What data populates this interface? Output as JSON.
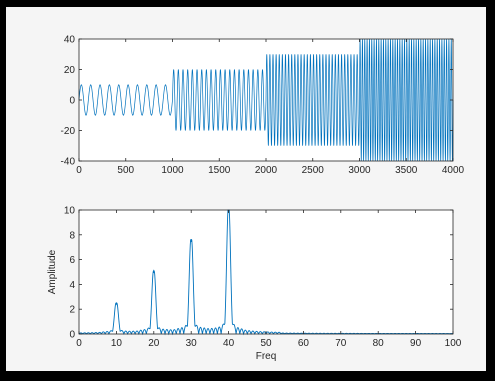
{
  "colors": {
    "line": "#0072bd",
    "axis": "#262626",
    "plot_bg": "#ffffff",
    "figure_bg": "#f5f5f5"
  },
  "chart_data": [
    {
      "type": "line",
      "title": "",
      "xlabel": "",
      "ylabel": "",
      "xlim": [
        0,
        4000
      ],
      "ylim": [
        -40,
        40
      ],
      "xticks": [
        0,
        500,
        1000,
        1500,
        2000,
        2500,
        3000,
        3500,
        4000
      ],
      "yticks": [
        -40,
        -20,
        0,
        20,
        40
      ],
      "grid": false,
      "legend": "none",
      "segments": [
        {
          "x_start": 0,
          "x_end": 1000,
          "amplitude": 10,
          "cycles": 10
        },
        {
          "x_start": 1000,
          "x_end": 2000,
          "amplitude": 20,
          "cycles": 20
        },
        {
          "x_start": 2000,
          "x_end": 3000,
          "amplitude": 30,
          "cycles": 30
        },
        {
          "x_start": 3000,
          "x_end": 4000,
          "amplitude": 40,
          "cycles": 40
        }
      ]
    },
    {
      "type": "line",
      "title": "",
      "xlabel": "Freq",
      "ylabel": "Amplitude",
      "xlim": [
        0,
        100
      ],
      "ylim": [
        0,
        10
      ],
      "xticks": [
        0,
        10,
        20,
        30,
        40,
        50,
        60,
        70,
        80,
        90,
        100
      ],
      "yticks": [
        0,
        2,
        4,
        6,
        8,
        10
      ],
      "grid": false,
      "legend": "none",
      "peaks": [
        {
          "freq": 10,
          "amplitude": 2.4
        },
        {
          "freq": 20,
          "amplitude": 4.9
        },
        {
          "freq": 30,
          "amplitude": 7.4
        },
        {
          "freq": 40,
          "amplitude": 9.9
        }
      ]
    }
  ]
}
